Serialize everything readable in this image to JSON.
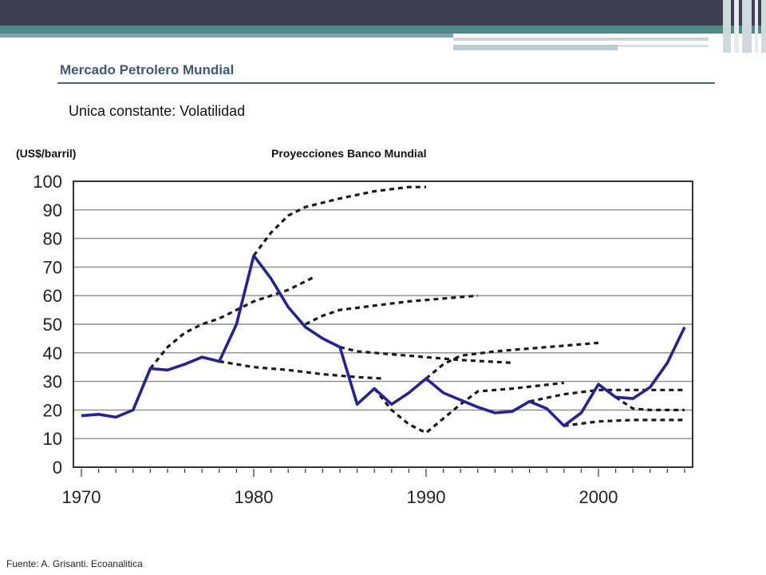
{
  "slide": {
    "title": "Mercado Petrolero Mundial",
    "subtitle": "Unica constante: Volatilidad",
    "unit_label": "(US$/barril)",
    "projection_label": "Proyecciones Banco Mundial",
    "source": "Fuente: A. Grisanti. Ecoanalitica",
    "colors": {
      "top_band": "#3f3f52",
      "teal_band": "#4e8a8a",
      "title": "#3b5a73",
      "actual_line": "#22229a",
      "projection_line": "#1a1a1a"
    }
  },
  "chart_data": {
    "type": "line",
    "title": "",
    "xlabel": "",
    "ylabel": "(US$/barril)",
    "xlim": [
      1970,
      2005
    ],
    "ylim": [
      0,
      100
    ],
    "x_ticks": [
      1970,
      1980,
      1990,
      2000
    ],
    "y_ticks": [
      0,
      10,
      20,
      30,
      40,
      50,
      60,
      70,
      80,
      90,
      100
    ],
    "grid": true,
    "series": [
      {
        "style": "solid",
        "points": [
          [
            1970,
            18
          ],
          [
            1971,
            18.5
          ],
          [
            1972,
            17.5
          ],
          [
            1973,
            20
          ],
          [
            1974,
            34.5
          ],
          [
            1975,
            34
          ],
          [
            1976,
            36
          ],
          [
            1977,
            38.5
          ],
          [
            1978,
            37
          ],
          [
            1979,
            50
          ],
          [
            1980,
            74
          ],
          [
            1981,
            66
          ],
          [
            1982,
            56
          ],
          [
            1983,
            49
          ],
          [
            1984,
            45
          ],
          [
            1985,
            42
          ],
          [
            1986,
            22
          ],
          [
            1987,
            27.5
          ],
          [
            1988,
            22
          ],
          [
            1989,
            26
          ],
          [
            1990,
            31
          ],
          [
            1991,
            26
          ],
          [
            1992,
            23.5
          ],
          [
            1993,
            21
          ],
          [
            1994,
            19
          ],
          [
            1995,
            19.5
          ],
          [
            1996,
            23
          ],
          [
            1997,
            20.5
          ],
          [
            1998,
            14.5
          ],
          [
            1999,
            19
          ],
          [
            2000,
            29
          ],
          [
            2001,
            24.5
          ],
          [
            2002,
            24
          ],
          [
            2003,
            28
          ],
          [
            2004,
            36.5
          ],
          [
            2005,
            49
          ]
        ]
      }
    ],
    "projections": [
      {
        "points": [
          [
            1974,
            34.5
          ],
          [
            1975,
            42
          ],
          [
            1976,
            47
          ],
          [
            1977,
            50
          ],
          [
            1978,
            52
          ],
          [
            1979,
            55
          ],
          [
            1980,
            58
          ],
          [
            1981,
            60
          ],
          [
            1982,
            62
          ],
          [
            1983,
            65
          ],
          [
            1983.5,
            66.5
          ]
        ]
      },
      {
        "points": [
          [
            1978,
            37
          ],
          [
            1980,
            35
          ],
          [
            1982,
            34
          ],
          [
            1984,
            32.5
          ],
          [
            1986,
            31.5
          ],
          [
            1987.5,
            31
          ]
        ]
      },
      {
        "points": [
          [
            1980,
            74
          ],
          [
            1981,
            82
          ],
          [
            1982,
            88
          ],
          [
            1983,
            91
          ],
          [
            1985,
            94
          ],
          [
            1987,
            96.5
          ],
          [
            1989,
            98
          ],
          [
            1990,
            98
          ]
        ]
      },
      {
        "points": [
          [
            1983,
            50
          ],
          [
            1984,
            53
          ],
          [
            1985,
            55
          ],
          [
            1987,
            56.5
          ],
          [
            1989,
            58
          ],
          [
            1991,
            59
          ],
          [
            1993,
            60
          ]
        ]
      },
      {
        "points": [
          [
            1985,
            42
          ],
          [
            1986,
            40.5
          ],
          [
            1988,
            39.5
          ],
          [
            1990,
            38.5
          ],
          [
            1992,
            37.5
          ],
          [
            1995,
            36.5
          ]
        ]
      },
      {
        "points": [
          [
            1987,
            27.5
          ],
          [
            1988,
            20
          ],
          [
            1989,
            15
          ],
          [
            1990,
            12
          ],
          [
            1991,
            17
          ],
          [
            1992,
            22
          ],
          [
            1993,
            26.5
          ],
          [
            1995,
            27.5
          ],
          [
            1998,
            29.5
          ]
        ]
      },
      {
        "points": [
          [
            1990,
            31
          ],
          [
            1991,
            36
          ],
          [
            1992,
            39
          ],
          [
            1994,
            40.5
          ],
          [
            1996,
            41.5
          ],
          [
            1998,
            42.5
          ],
          [
            2000,
            43.5
          ]
        ]
      },
      {
        "points": [
          [
            1996,
            23
          ],
          [
            1998,
            25.5
          ],
          [
            2000,
            27
          ],
          [
            2002,
            27
          ],
          [
            2005,
            27
          ]
        ]
      },
      {
        "points": [
          [
            1998,
            14.5
          ],
          [
            2000,
            16
          ],
          [
            2002,
            16.5
          ],
          [
            2005,
            16.5
          ]
        ]
      },
      {
        "points": [
          [
            2001,
            24.5
          ],
          [
            2002,
            20.5
          ],
          [
            2003,
            20
          ],
          [
            2005,
            20
          ]
        ]
      }
    ]
  }
}
